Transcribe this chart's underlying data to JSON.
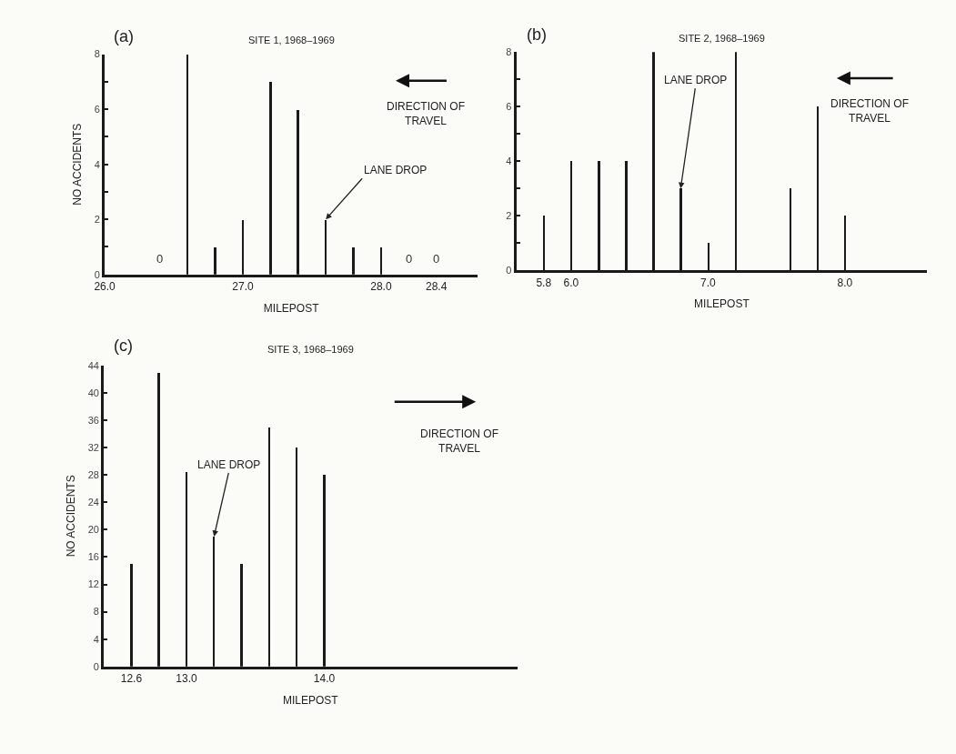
{
  "chart_data": [
    {
      "type": "bar",
      "title": "SITE 1, 1968–1969",
      "xlabel": "MILEPOST",
      "ylabel": "NO ACCIDENTS",
      "annotations": [
        "(a)",
        "DIRECTION OF TRAVEL",
        {
          "text": "LANE DROP",
          "x": 27.6,
          "y": 2
        }
      ],
      "x": [
        26.4,
        26.6,
        26.8,
        27.0,
        27.2,
        27.4,
        27.6,
        27.8,
        28.0,
        28.2,
        28.4
      ],
      "values": [
        0,
        8,
        1,
        2,
        7,
        6,
        2,
        1,
        1,
        0,
        0
      ],
      "value_labels": [
        "0",
        null,
        null,
        null,
        null,
        null,
        null,
        null,
        null,
        "0",
        "0"
      ],
      "color": "#1a1a1a",
      "xlim": [
        26.0,
        28.7
      ],
      "xticks": [
        {
          "value": 26.0,
          "label": "26.0"
        },
        {
          "value": 27.0,
          "label": "27.0"
        },
        {
          "value": 28.0,
          "label": "28.0"
        },
        28.4
      ],
      "ylim": [
        0,
        8
      ],
      "yticks": [
        0,
        {
          "value": 1,
          "label": null
        },
        2,
        {
          "value": 3,
          "label": null
        },
        4,
        {
          "value": 5,
          "label": null
        },
        6,
        {
          "value": 7,
          "label": null
        },
        8
      ]
    },
    {
      "type": "bar",
      "title": "SITE 2, 1968–1969",
      "xlabel": "MILEPOST",
      "annotations": [
        "(b)",
        "DIRECTION OF TRAVEL",
        {
          "text": "LANE DROP",
          "x": 6.8,
          "y": 3
        }
      ],
      "x": [
        5.8,
        6.0,
        6.2,
        6.4,
        6.6,
        6.8,
        7.0,
        7.2,
        7.6,
        7.8,
        8.0
      ],
      "values": [
        2,
        4,
        4,
        4,
        8,
        3,
        1,
        8,
        3,
        6,
        2
      ],
      "color": "#1a1a1a",
      "xlim": [
        5.6,
        8.6
      ],
      "xticks": [
        5.8,
        {
          "value": 6.0,
          "label": "6.0"
        },
        {
          "value": 7.0,
          "label": "7.0"
        },
        {
          "value": 8.0,
          "label": "8.0"
        }
      ],
      "ylim": [
        0,
        8
      ],
      "yticks": [
        0,
        {
          "value": 1,
          "label": null
        },
        2,
        {
          "value": 3,
          "label": null
        },
        4,
        {
          "value": 5,
          "label": null
        },
        6,
        {
          "value": 7,
          "label": null
        },
        8
      ]
    },
    {
      "type": "bar",
      "title": "SITE 3, 1968–1969",
      "xlabel": "MILEPOST",
      "ylabel": "NO ACCIDENTS",
      "annotations": [
        "(c)",
        "DIRECTION OF TRAVEL",
        {
          "text": "LANE DROP",
          "x": 13.2,
          "y": 19
        }
      ],
      "x": [
        12.6,
        12.8,
        13.0,
        13.2,
        13.4,
        13.6,
        13.8,
        14.0
      ],
      "values": [
        15,
        43,
        28.5,
        19,
        15,
        35,
        32,
        28
      ],
      "color": "#1a1a1a",
      "xlim": [
        12.4,
        15.4
      ],
      "xticks": [
        12.6,
        {
          "value": 13.0,
          "label": "13.0"
        },
        {
          "value": 14.0,
          "label": "14.0"
        }
      ],
      "ylim": [
        0,
        44
      ],
      "yticks": [
        0,
        4,
        8,
        12,
        16,
        20,
        24,
        28,
        32,
        36,
        40,
        44
      ]
    }
  ]
}
